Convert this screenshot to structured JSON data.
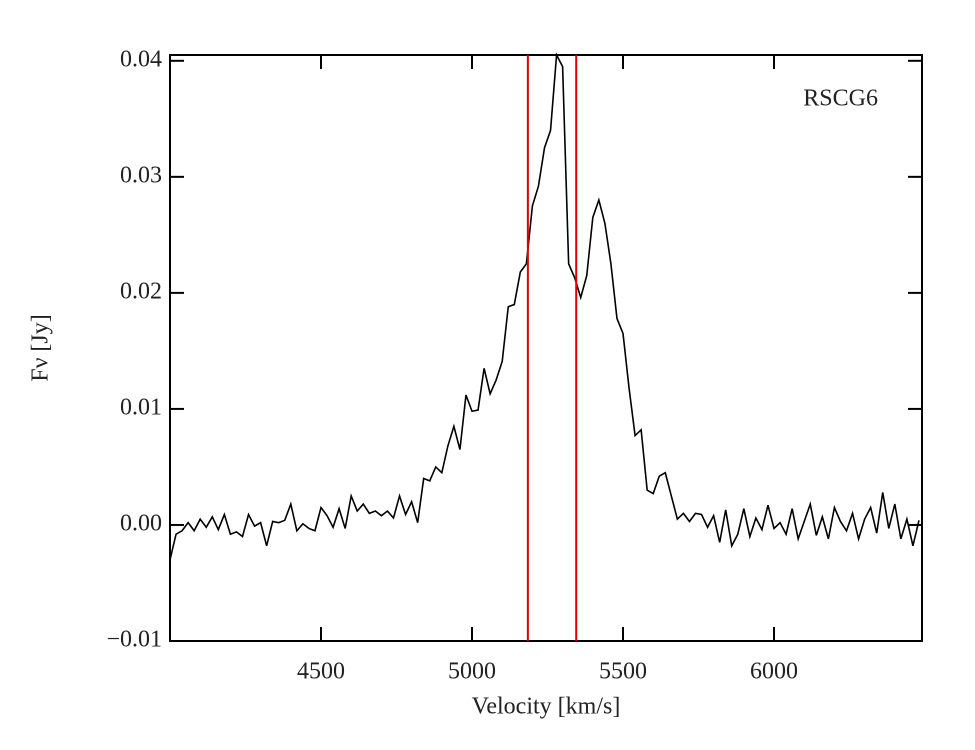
{
  "chart_data": {
    "type": "line",
    "xlabel": "Velocity [km/s]",
    "ylabel": "Fν [Jy]",
    "annotation": "RSCG6",
    "xlim": [
      4000,
      6490
    ],
    "ylim": [
      -0.01,
      0.0405
    ],
    "xticks": [
      4500,
      5000,
      5500,
      6000
    ],
    "yticks": [
      {
        "value": -0.01,
        "label": "−0.01"
      },
      {
        "value": 0,
        "label": "0.00"
      },
      0.01,
      0.02,
      0.03,
      0.04
    ],
    "vlines": {
      "color": "#e00000",
      "values": [
        5185,
        5345
      ]
    },
    "x": [
      4000,
      4020,
      4040,
      4060,
      4080,
      4100,
      4120,
      4140,
      4160,
      4180,
      4200,
      4220,
      4240,
      4260,
      4280,
      4300,
      4320,
      4340,
      4360,
      4380,
      4400,
      4420,
      4440,
      4460,
      4480,
      4500,
      4520,
      4540,
      4560,
      4580,
      4600,
      4620,
      4640,
      4660,
      4680,
      4700,
      4720,
      4740,
      4760,
      4780,
      4800,
      4820,
      4840,
      4860,
      4880,
      4900,
      4920,
      4940,
      4960,
      4980,
      5000,
      5020,
      5040,
      5060,
      5080,
      5100,
      5120,
      5140,
      5160,
      5180,
      5200,
      5220,
      5240,
      5260,
      5280,
      5300,
      5320,
      5340,
      5360,
      5380,
      5400,
      5420,
      5440,
      5460,
      5480,
      5500,
      5520,
      5540,
      5560,
      5580,
      5600,
      5620,
      5640,
      5660,
      5680,
      5700,
      5720,
      5740,
      5760,
      5780,
      5800,
      5820,
      5840,
      5860,
      5880,
      5900,
      5920,
      5940,
      5960,
      5980,
      6000,
      6020,
      6040,
      6060,
      6080,
      6100,
      6120,
      6140,
      6160,
      6180,
      6200,
      6220,
      6240,
      6260,
      6280,
      6300,
      6320,
      6340,
      6360,
      6380,
      6400,
      6420,
      6440,
      6460,
      6480
    ],
    "series": [
      {
        "color": "#000000",
        "values": [
          -0.003,
          -0.0008,
          -0.0005,
          0.0002,
          -0.0005,
          0.0005,
          -0.0002,
          0.0007,
          -0.0004,
          0.0009,
          -0.0008,
          -0.0006,
          -0.001,
          0.0009,
          -0.0001,
          0.0002,
          -0.0018,
          0.0003,
          0.0002,
          0.0004,
          0.0018,
          -0.0005,
          0.0001,
          -0.0003,
          -0.0005,
          0.0015,
          0.0008,
          -0.0002,
          0.0014,
          -0.0003,
          0.0025,
          0.0012,
          0.0018,
          0.001,
          0.0012,
          0.0008,
          0.0012,
          0.0006,
          0.0025,
          0.0009,
          0.002,
          0.0002,
          0.004,
          0.0038,
          0.005,
          0.0045,
          0.0068,
          0.0085,
          0.0065,
          0.0112,
          0.0098,
          0.0099,
          0.0135,
          0.0113,
          0.0125,
          0.0141,
          0.0188,
          0.019,
          0.0218,
          0.0225,
          0.0275,
          0.0292,
          0.0325,
          0.034,
          0.0405,
          0.0395,
          0.0225,
          0.0213,
          0.0196,
          0.0215,
          0.0265,
          0.028,
          0.026,
          0.0225,
          0.0178,
          0.0165,
          0.0118,
          0.0077,
          0.0082,
          0.003,
          0.0027,
          0.0042,
          0.0045,
          0.0025,
          0.0005,
          0.001,
          0.0003,
          0.001,
          0.0009,
          -0.0002,
          0.0008,
          -0.0015,
          0.0013,
          -0.0018,
          -0.0008,
          0.0014,
          -0.001,
          0.0006,
          -0.0004,
          0.0017,
          -0.0003,
          0.0002,
          -0.0008,
          0.0014,
          -0.0012,
          0.0003,
          0.0018,
          -0.0009,
          0.0007,
          -0.0012,
          0.0015,
          0.0003,
          -0.0005,
          0.001,
          -0.0012,
          0.0005,
          0.0015,
          -0.0007,
          0.0028,
          -0.0003,
          0.0018,
          -0.0012,
          0.0005,
          -0.0018,
          0.0004
        ]
      }
    ]
  }
}
